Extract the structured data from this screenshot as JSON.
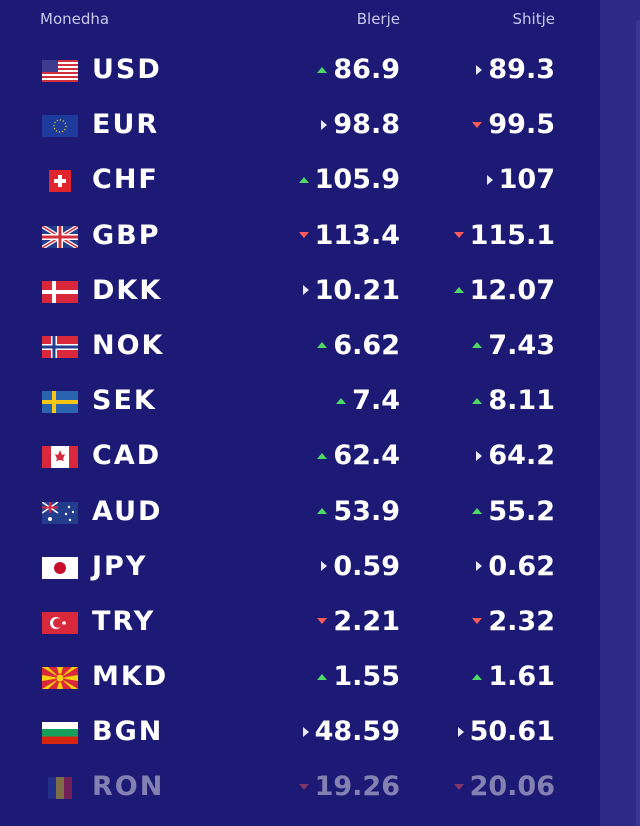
{
  "header": {
    "currency": "Monedha",
    "buy": "Blerje",
    "sell": "Shitje"
  },
  "colors": {
    "background": "#1c1a74",
    "up": "#4cd964",
    "down": "#ff5a5a",
    "same": "#e8e8f5"
  },
  "rates": [
    {
      "code": "USD",
      "flag": "us-flag-icon",
      "buy": "86.9",
      "buy_trend": "up",
      "sell": "89.3",
      "sell_trend": "same"
    },
    {
      "code": "EUR",
      "flag": "eu-flag-icon",
      "buy": "98.8",
      "buy_trend": "same",
      "sell": "99.5",
      "sell_trend": "down"
    },
    {
      "code": "CHF",
      "flag": "ch-flag-icon",
      "buy": "105.9",
      "buy_trend": "up",
      "sell": "107",
      "sell_trend": "same"
    },
    {
      "code": "GBP",
      "flag": "gb-flag-icon",
      "buy": "113.4",
      "buy_trend": "down",
      "sell": "115.1",
      "sell_trend": "down"
    },
    {
      "code": "DKK",
      "flag": "dk-flag-icon",
      "buy": "10.21",
      "buy_trend": "same",
      "sell": "12.07",
      "sell_trend": "up"
    },
    {
      "code": "NOK",
      "flag": "no-flag-icon",
      "buy": "6.62",
      "buy_trend": "up",
      "sell": "7.43",
      "sell_trend": "up"
    },
    {
      "code": "SEK",
      "flag": "se-flag-icon",
      "buy": "7.4",
      "buy_trend": "up",
      "sell": "8.11",
      "sell_trend": "up"
    },
    {
      "code": "CAD",
      "flag": "ca-flag-icon",
      "buy": "62.4",
      "buy_trend": "up",
      "sell": "64.2",
      "sell_trend": "same"
    },
    {
      "code": "AUD",
      "flag": "au-flag-icon",
      "buy": "53.9",
      "buy_trend": "up",
      "sell": "55.2",
      "sell_trend": "up"
    },
    {
      "code": "JPY",
      "flag": "jp-flag-icon",
      "buy": "0.59",
      "buy_trend": "same",
      "sell": "0.62",
      "sell_trend": "same"
    },
    {
      "code": "TRY",
      "flag": "tr-flag-icon",
      "buy": "2.21",
      "buy_trend": "down",
      "sell": "2.32",
      "sell_trend": "down"
    },
    {
      "code": "MKD",
      "flag": "mk-flag-icon",
      "buy": "1.55",
      "buy_trend": "up",
      "sell": "1.61",
      "sell_trend": "up"
    },
    {
      "code": "BGN",
      "flag": "bg-flag-icon",
      "buy": "48.59",
      "buy_trend": "same",
      "sell": "50.61",
      "sell_trend": "same"
    },
    {
      "code": "RON",
      "flag": "ro-flag-icon",
      "buy": "19.26",
      "buy_trend": "down",
      "sell": "20.06",
      "sell_trend": "down"
    }
  ]
}
